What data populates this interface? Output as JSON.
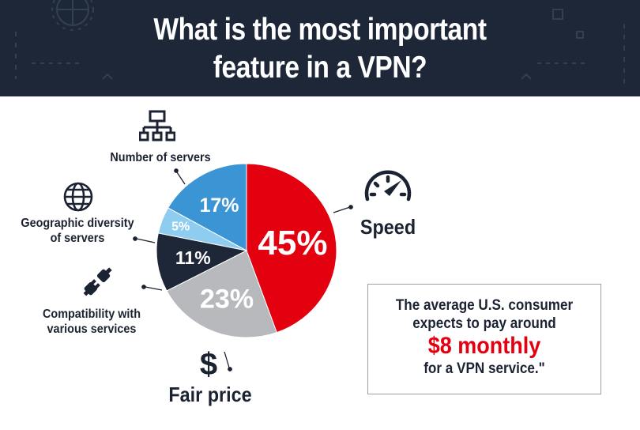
{
  "title_lines": [
    "What is the most important",
    "feature in a VPN?"
  ],
  "chart_data": {
    "type": "pie",
    "title": "What is the most important feature in a VPN?",
    "slices": [
      {
        "label": "Speed",
        "value": 45,
        "text": "45%",
        "color": "#e3000f"
      },
      {
        "label": "Fair price",
        "value": 23,
        "text": "23%",
        "color": "#b7b9bd"
      },
      {
        "label": "Compatibility with various services",
        "value": 11,
        "text": "11%",
        "color": "#1d2738"
      },
      {
        "label": "Geographic diversity of servers",
        "value": 5,
        "text": "5%",
        "color": "#8fcdf0"
      },
      {
        "label": "Number of servers",
        "value": 17,
        "text": "17%",
        "color": "#3b94d4"
      }
    ]
  },
  "labels": {
    "speed": "Speed",
    "fair_price": "Fair price",
    "compat_line1": "Compatibility with",
    "compat_line2": "various services",
    "geo_line1": "Geographic diversity",
    "geo_line2": "of servers",
    "servers": "Number of servers"
  },
  "callout": {
    "line1": "The average U.S. consumer",
    "line2": "expects to pay around",
    "price": "$8 monthly",
    "line3": "for a VPN service.\""
  },
  "icons": {
    "servers": "network-icon",
    "geo": "globe-icon",
    "compat": "plug-icon",
    "speed": "speedometer-icon",
    "price": "dollar-icon"
  }
}
